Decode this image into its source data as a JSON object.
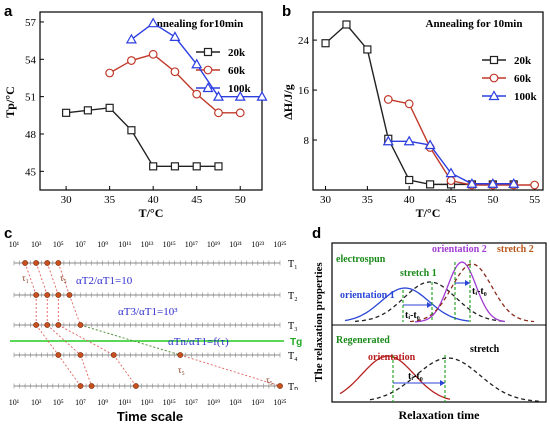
{
  "chart_data": [
    {
      "panel": "a",
      "type": "line",
      "title": "Annealing for10min",
      "xlabel": "T/°C",
      "ylabel": "Tp/°C",
      "xlim": [
        27,
        52.5
      ],
      "ylim": [
        43.5,
        57.8
      ],
      "xticks": [
        30,
        35,
        40,
        45,
        50
      ],
      "yticks": [
        45,
        48,
        51,
        54,
        57
      ],
      "legend_position": "top-right",
      "series": [
        {
          "name": "20k",
          "color": "#222222",
          "marker": "square",
          "x": [
            30,
            32.5,
            35,
            37.5,
            40,
            42.5,
            45,
            47.5
          ],
          "y": [
            49.7,
            49.9,
            50.1,
            48.3,
            45.4,
            45.4,
            45.4,
            45.4
          ]
        },
        {
          "name": "60k",
          "color": "#c0392b",
          "marker": "circle",
          "x": [
            35,
            37.5,
            40,
            42.5,
            45,
            47.5,
            50
          ],
          "y": [
            52.9,
            53.9,
            54.4,
            53.0,
            51.2,
            49.7,
            49.7
          ]
        },
        {
          "name": "100k",
          "color": "#2c3ee0",
          "marker": "triangle",
          "x": [
            37.5,
            40,
            42.5,
            45,
            47.5,
            50,
            52.5
          ],
          "y": [
            55.6,
            56.9,
            55.8,
            53.6,
            51.0,
            51.0,
            51.0
          ]
        }
      ]
    },
    {
      "panel": "b",
      "type": "line",
      "title": "Annealing for 10min",
      "xlabel": "T/°C",
      "ylabel": "ΔH/J/g",
      "xlim": [
        28.5,
        56
      ],
      "ylim": [
        0,
        28.5
      ],
      "xticks": [
        30,
        35,
        40,
        45,
        50,
        55
      ],
      "yticks": [
        8,
        16,
        24
      ],
      "legend_position": "top-right",
      "series": [
        {
          "name": "20k",
          "color": "#222222",
          "marker": "square",
          "x": [
            30,
            32.5,
            35,
            37.5,
            40,
            42.5,
            45,
            47.5,
            50,
            52.5
          ],
          "y": [
            23.5,
            26.5,
            22.5,
            8.2,
            1.6,
            0.9,
            0.9,
            0.9,
            0.9,
            0.9
          ]
        },
        {
          "name": "60k",
          "color": "#c0392b",
          "marker": "circle",
          "x": [
            37.5,
            40,
            42.5,
            45,
            47.5,
            50,
            52.5,
            55
          ],
          "y": [
            14.5,
            13.8,
            6.8,
            1.5,
            0.8,
            0.8,
            0.8,
            0.8
          ]
        },
        {
          "name": "100k",
          "color": "#2c3ee0",
          "marker": "triangle",
          "x": [
            37.5,
            40,
            42.5,
            45,
            47.5,
            50,
            52.5
          ],
          "y": [
            7.8,
            7.8,
            7.2,
            2.7,
            1.0,
            1.0,
            1.0
          ]
        }
      ]
    },
    {
      "panel": "c",
      "type": "diagram",
      "xlabel": "Time scale",
      "top_tick_labels": [
        "10¹",
        "10³",
        "10⁵",
        "10⁷",
        "10⁹",
        "10¹¹",
        "10¹³",
        "10¹⁵",
        "10¹⁷",
        "10¹⁹",
        "10²¹",
        "10²³",
        "10²⁵"
      ],
      "bottom_tick_labels": [
        "10¹",
        "10³",
        "10⁵",
        "10⁷",
        "10⁹",
        "10¹¹",
        "10¹³",
        "10¹⁵",
        "10¹⁷",
        "10¹⁹",
        "10²¹",
        "10²³",
        "10²⁵"
      ],
      "rows": [
        {
          "label": "T₁",
          "points": [
            2,
            3,
            4,
            5
          ]
        },
        {
          "label": "T₂",
          "points": [
            3,
            4,
            5,
            6
          ]
        },
        {
          "label": "T₃",
          "points": [
            3,
            4,
            5,
            7
          ]
        },
        {
          "label": "T₄",
          "points": [
            5,
            7,
            10,
            16
          ]
        },
        {
          "label": "Tₙ",
          "points": [
            7,
            8,
            12,
            25
          ]
        }
      ],
      "tg_label": "Tg",
      "equations": [
        "αT2/αT1=10",
        "αT3/αT1=10³",
        "αTn/αT1=f(τ)"
      ],
      "tau_labels": [
        "τ₁",
        "τ₅"
      ]
    },
    {
      "panel": "d",
      "type": "diagram",
      "ylabel": "The relaxation properties",
      "xlabel": "Relaxation time",
      "labels": {
        "electrospun": "electrospun",
        "orientation1": "orientation 1",
        "stretch1": "stretch 1",
        "orientation2": "orientation 2",
        "stretch2": "stretch 2",
        "tt0_a": "tᵢ-t₀",
        "tt0_b": "tᵢ-t₀",
        "regenerated": "Regenerated",
        "orientation": "orientation",
        "stretch": "stretch",
        "tt0_c": "tᵢ-t₀"
      }
    }
  ],
  "panel_letters": [
    "a",
    "b",
    "c",
    "d"
  ]
}
